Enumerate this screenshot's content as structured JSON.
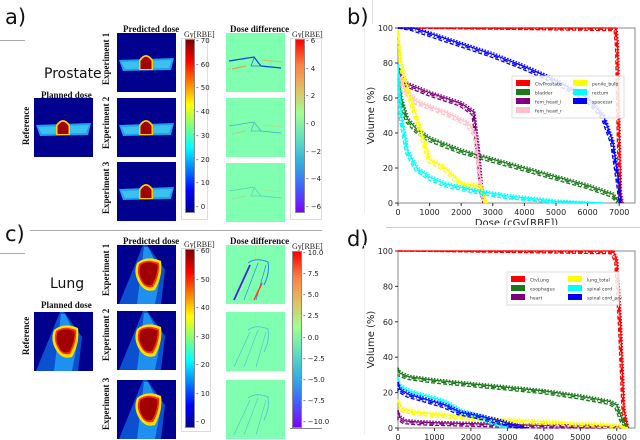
{
  "panels": {
    "a": {
      "letter": "a)",
      "site": "Prostate",
      "reference_title": "Planned dose",
      "reference_label": "Reference",
      "pred_title": "Predicted dose",
      "diff_title": "Dose difference",
      "experiments": [
        "Experiment 1",
        "Experiment 2",
        "Experiment 3"
      ],
      "dose_cbar": {
        "title": "Gy[RBE]",
        "ticks": [
          "70",
          "60",
          "50",
          "40",
          "30",
          "20",
          "10",
          "0"
        ],
        "range": [
          0,
          73
        ]
      },
      "diff_cbar": {
        "title": "Gy[RBE]",
        "ticks": [
          "6",
          "4",
          "2",
          "0",
          "−2",
          "−4",
          "−6"
        ],
        "range": [
          -6.5,
          6.5
        ]
      }
    },
    "c": {
      "letter": "c)",
      "site": "Lung",
      "reference_title": "Planned dose",
      "reference_label": "Reference",
      "pred_title": "Predicted dose",
      "diff_title": "Dose difference",
      "experiments": [
        "Experiment 1",
        "Experiment 2",
        "Experiment 3"
      ],
      "dose_cbar": {
        "title": "Gy[RBE]",
        "ticks": [
          "60",
          "50",
          "40",
          "30",
          "20",
          "10",
          "0"
        ],
        "range": [
          0,
          63
        ]
      },
      "diff_cbar": {
        "title": "Gy[RBE]",
        "ticks": [
          "10.0",
          "7.5",
          "5.0",
          "2.5",
          "0.0",
          "−2.5",
          "−5.0",
          "−7.5",
          "−10.0"
        ],
        "range": [
          -10.5,
          10.5
        ]
      }
    },
    "b": {
      "letter": "b)"
    },
    "d": {
      "letter": "d)"
    }
  },
  "chart_data": [
    {
      "id": "b",
      "type": "line",
      "title": "",
      "xlabel": "Dose (cGy[RBE])",
      "ylabel": "Volume (%)",
      "xlim": [
        0,
        7500
      ],
      "ylim": [
        0,
        100
      ],
      "xticks": [
        "0",
        "1000",
        "2000",
        "3000",
        "4000",
        "5000",
        "6000",
        "7000"
      ],
      "xtick_values": [
        0,
        1000,
        2000,
        3000,
        4000,
        5000,
        6000,
        7000
      ],
      "yticks": [
        "0",
        "20",
        "40",
        "60",
        "80",
        "100"
      ],
      "ytick_values": [
        0,
        20,
        40,
        60,
        80,
        100
      ],
      "legend_position": "upper-right",
      "legend_columns": 2,
      "line_styles": [
        "solid",
        "dashed",
        "dashdot",
        "dotted"
      ],
      "series": [
        {
          "name": "CtvProstate",
          "color": "#ff0000",
          "x": [
            0,
            6900,
            6950,
            7000,
            7050,
            7100
          ],
          "y": [
            100,
            100,
            90,
            40,
            5,
            0
          ]
        },
        {
          "name": "bladder",
          "color": "#1a7a1a",
          "x": [
            0,
            100,
            300,
            600,
            1000,
            2000,
            3000,
            4000,
            5000,
            6000,
            6800,
            7000
          ],
          "y": [
            80,
            60,
            48,
            42,
            37,
            30,
            25,
            20,
            15,
            10,
            5,
            0
          ]
        },
        {
          "name": "fem_head_l",
          "color": "#800080",
          "x": [
            0,
            100,
            300,
            1000,
            2000,
            2400,
            2550,
            2650,
            2750
          ],
          "y": [
            80,
            72,
            68,
            63,
            57,
            52,
            30,
            8,
            0
          ]
        },
        {
          "name": "fem_head_r",
          "color": "#ffc0cb",
          "x": [
            0,
            200,
            600,
            1500,
            2200,
            2450,
            2600,
            2750
          ],
          "y": [
            75,
            65,
            58,
            52,
            46,
            40,
            15,
            0
          ]
        },
        {
          "name": "penile_bulb",
          "color": "#ffff00",
          "x": [
            0,
            100,
            200,
            400,
            700,
            1000,
            1500,
            2000,
            2600,
            2800
          ],
          "y": [
            100,
            80,
            72,
            60,
            43,
            25,
            20,
            11,
            10,
            0
          ]
        },
        {
          "name": "rectum",
          "color": "#00ffff",
          "x": [
            0,
            100,
            300,
            600,
            1000,
            1500,
            2500,
            3500,
            5000,
            6500
          ],
          "y": [
            80,
            50,
            30,
            20,
            15,
            11,
            7,
            4,
            1,
            0
          ]
        },
        {
          "name": "spacesar",
          "color": "#0000ff",
          "x": [
            0,
            500,
            1000,
            2000,
            3000,
            4000,
            5000,
            6000,
            6500,
            6800,
            7000,
            7050
          ],
          "y": [
            100,
            100,
            97,
            91,
            85,
            78,
            70,
            60,
            50,
            35,
            10,
            0
          ]
        }
      ]
    },
    {
      "id": "d",
      "type": "line",
      "title": "",
      "xlabel": "Dose (cGy[RBE])",
      "ylabel": "Volume (%)",
      "xlim": [
        0,
        6500
      ],
      "ylim": [
        0,
        100
      ],
      "xticks": [
        "0",
        "1000",
        "2000",
        "3000",
        "4000",
        "5000",
        "6000"
      ],
      "xtick_values": [
        0,
        1000,
        2000,
        3000,
        4000,
        5000,
        6000
      ],
      "yticks": [
        "0",
        "20",
        "40",
        "60",
        "80",
        "100"
      ],
      "ytick_values": [
        0,
        20,
        40,
        60,
        80,
        100
      ],
      "legend_position": "upper-right",
      "legend_columns": 2,
      "line_styles": [
        "solid",
        "dashed",
        "dashdot",
        "dotted"
      ],
      "series": [
        {
          "name": "CtvLung",
          "color": "#ff0000",
          "x": [
            0,
            5900,
            6000,
            6100,
            6200,
            6300
          ],
          "y": [
            100,
            100,
            95,
            60,
            10,
            0
          ]
        },
        {
          "name": "esophagus",
          "color": "#1a7a1a",
          "x": [
            0,
            50,
            300,
            1000,
            2000,
            3000,
            4000,
            5000,
            5800,
            6000,
            6150,
            6300
          ],
          "y": [
            34,
            31,
            29,
            27,
            25,
            23,
            21,
            18,
            15,
            13,
            5,
            0
          ]
        },
        {
          "name": "heart",
          "color": "#800080",
          "x": [
            0,
            50,
            200,
            500,
            1000,
            2000,
            3000,
            4000,
            5000,
            6000,
            6200
          ],
          "y": [
            10,
            6,
            4,
            3.5,
            3,
            2.5,
            2,
            1.5,
            1,
            0.5,
            0
          ]
        },
        {
          "name": "lung_total",
          "color": "#ffff00",
          "x": [
            0,
            100,
            500,
            1000,
            2000,
            3000,
            4000,
            5000,
            6000,
            6300
          ],
          "y": [
            16,
            11,
            9,
            8,
            6,
            4.5,
            3.5,
            2.5,
            1.5,
            0
          ]
        },
        {
          "name": "spinal cord",
          "color": "#00ffff",
          "x": [
            0,
            50,
            300,
            800,
            1300,
            1700,
            2200,
            2700,
            3000
          ],
          "y": [
            28,
            24,
            21,
            18,
            15,
            10,
            7,
            3,
            0
          ]
        },
        {
          "name": "spinal cord_prv",
          "color": "#0000ff",
          "x": [
            0,
            50,
            300,
            800,
            1300,
            1700,
            2200,
            2800,
            3300,
            3500
          ],
          "y": [
            26,
            22,
            19,
            16,
            13,
            9,
            7,
            4,
            1,
            0
          ]
        }
      ]
    }
  ]
}
